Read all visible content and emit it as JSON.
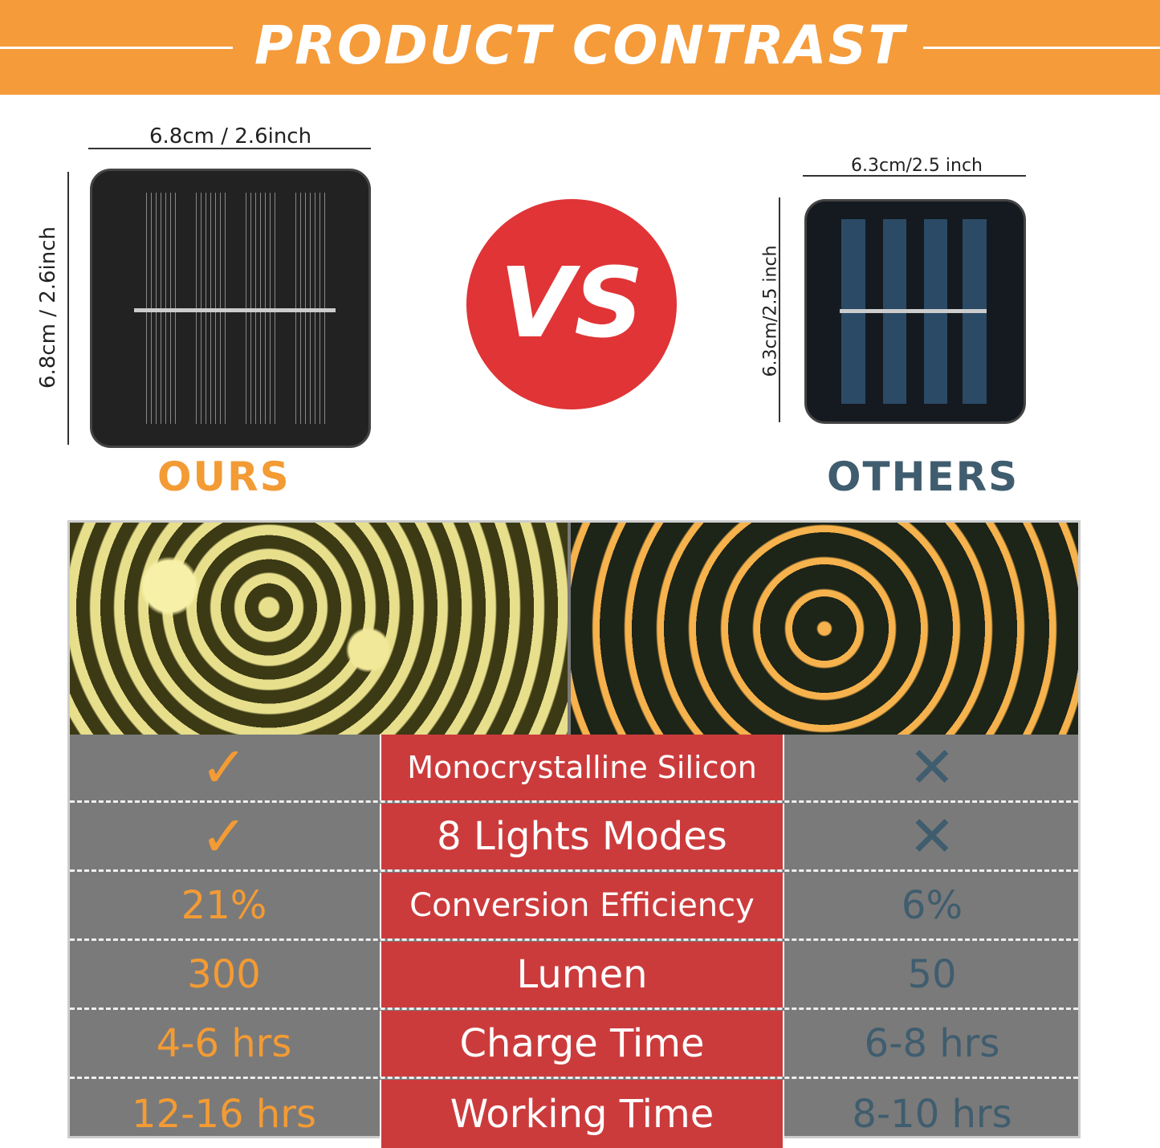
{
  "header": {
    "title": "PRODUCT CONTRAST",
    "bg_color": "#f59b3a"
  },
  "ours": {
    "label": "OURS",
    "width_dim": "6.8cm / 2.6inch",
    "height_dim": "6.8cm / 2.6inch",
    "color": "#f39b34"
  },
  "vs": {
    "label": "VS",
    "color": "#e03436"
  },
  "others": {
    "label": "OTHERS",
    "width_dim": "6.3cm/2.5 inch",
    "height_dim": "6.3cm/2.5 inch",
    "color": "#3f5d6e"
  },
  "rows": [
    {
      "ours": "✓",
      "feature": "Monocrystalline Silicon",
      "others": "✕",
      "ours_icon": "check-icon",
      "others_icon": "cross-icon"
    },
    {
      "ours": "✓",
      "feature": "8 Lights Modes",
      "others": "✕",
      "ours_icon": "check-icon",
      "others_icon": "cross-icon"
    },
    {
      "ours": "21%",
      "feature": "Conversion Efficiency",
      "others": "6%"
    },
    {
      "ours": "300",
      "feature": "Lumen",
      "others": "50"
    },
    {
      "ours": "4-6 hrs",
      "feature": "Charge Time",
      "others": "6-8 hrs"
    },
    {
      "ours": "12-16 hrs",
      "feature": "Working Time",
      "others": "8-10 hrs"
    }
  ]
}
